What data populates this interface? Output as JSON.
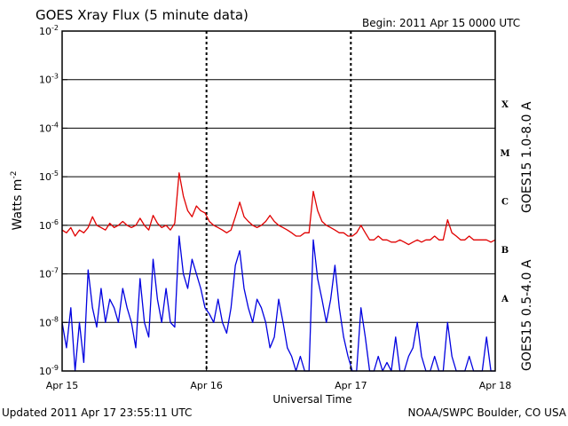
{
  "chart_data": {
    "type": "line",
    "title": "GOES Xray Flux (5 minute data)",
    "begin_label": "Begin:  2011 Apr 15 0000 UTC",
    "xlabel": "Universal Time",
    "ylabel_main": "Watts m",
    "ylabel_exp": "-2",
    "y_scale": "log",
    "ylim": [
      1e-09,
      0.01
    ],
    "y_ticks": [
      {
        "base": "10",
        "exp": "-2"
      },
      {
        "base": "10",
        "exp": "-3"
      },
      {
        "base": "10",
        "exp": "-4"
      },
      {
        "base": "10",
        "exp": "-5"
      },
      {
        "base": "10",
        "exp": "-6"
      },
      {
        "base": "10",
        "exp": "-7"
      },
      {
        "base": "10",
        "exp": "-8"
      },
      {
        "base": "10",
        "exp": "-9"
      }
    ],
    "x_ticks": [
      "Apr 15",
      "Apr 16",
      "Apr 17",
      "Apr 18"
    ],
    "xlim_days": [
      0,
      3
    ],
    "flare_classes": [
      "X",
      "M",
      "C",
      "B",
      "A"
    ],
    "grid": true,
    "series": [
      {
        "name": "GOES15 1.0-8.0 A",
        "color": "#e00000",
        "x_days": [
          0.0,
          0.03,
          0.06,
          0.09,
          0.12,
          0.15,
          0.18,
          0.21,
          0.24,
          0.27,
          0.3,
          0.33,
          0.36,
          0.39,
          0.42,
          0.45,
          0.48,
          0.51,
          0.54,
          0.57,
          0.6,
          0.63,
          0.66,
          0.69,
          0.72,
          0.75,
          0.78,
          0.81,
          0.84,
          0.87,
          0.9,
          0.93,
          0.96,
          0.99,
          1.02,
          1.05,
          1.08,
          1.11,
          1.14,
          1.17,
          1.2,
          1.23,
          1.26,
          1.29,
          1.32,
          1.35,
          1.38,
          1.41,
          1.44,
          1.47,
          1.5,
          1.53,
          1.56,
          1.59,
          1.62,
          1.65,
          1.68,
          1.71,
          1.74,
          1.77,
          1.8,
          1.83,
          1.86,
          1.89,
          1.92,
          1.95,
          1.98,
          2.01,
          2.04,
          2.07,
          2.1,
          2.13,
          2.16,
          2.19,
          2.22,
          2.25,
          2.28,
          2.31,
          2.34,
          2.37,
          2.4,
          2.43,
          2.46,
          2.49,
          2.52,
          2.55,
          2.58,
          2.61,
          2.64,
          2.67,
          2.7,
          2.73,
          2.76,
          2.79,
          2.82,
          2.85,
          2.88,
          2.91,
          2.94,
          2.97,
          3.0
        ],
        "y": [
          8e-07,
          7e-07,
          9e-07,
          6e-07,
          8e-07,
          7e-07,
          9e-07,
          1.5e-06,
          1e-06,
          9e-07,
          8e-07,
          1.1e-06,
          9e-07,
          1e-06,
          1.2e-06,
          1e-06,
          9e-07,
          1e-06,
          1.4e-06,
          1e-06,
          8e-07,
          1.6e-06,
          1.1e-06,
          9e-07,
          1e-06,
          8e-07,
          1.1e-06,
          1.2e-05,
          4e-06,
          2e-06,
          1.5e-06,
          2.5e-06,
          2e-06,
          1.8e-06,
          1.2e-06,
          1e-06,
          9e-07,
          8e-07,
          7e-07,
          8e-07,
          1.5e-06,
          3e-06,
          1.5e-06,
          1.2e-06,
          1e-06,
          9e-07,
          1e-06,
          1.2e-06,
          1.6e-06,
          1.2e-06,
          1e-06,
          9e-07,
          8e-07,
          7e-07,
          6e-07,
          6e-07,
          7e-07,
          7e-07,
          5e-06,
          2e-06,
          1.2e-06,
          1e-06,
          9e-07,
          8e-07,
          7e-07,
          7e-07,
          6e-07,
          6e-07,
          7e-07,
          1e-06,
          7e-07,
          5e-07,
          5e-07,
          6e-07,
          5e-07,
          5e-07,
          4.5e-07,
          4.5e-07,
          5e-07,
          4.5e-07,
          4e-07,
          4.5e-07,
          5e-07,
          4.5e-07,
          5e-07,
          5e-07,
          6e-07,
          5e-07,
          5e-07,
          1.3e-06,
          7e-07,
          6e-07,
          5e-07,
          5e-07,
          6e-07,
          5e-07,
          5e-07,
          5e-07,
          5e-07,
          4.5e-07,
          5e-07
        ]
      },
      {
        "name": "GOES15 0.5-4.0 A",
        "color": "#0000e0",
        "x_days": [
          0.0,
          0.03,
          0.06,
          0.09,
          0.12,
          0.15,
          0.18,
          0.21,
          0.24,
          0.27,
          0.3,
          0.33,
          0.36,
          0.39,
          0.42,
          0.45,
          0.48,
          0.51,
          0.54,
          0.57,
          0.6,
          0.63,
          0.66,
          0.69,
          0.72,
          0.75,
          0.78,
          0.81,
          0.84,
          0.87,
          0.9,
          0.93,
          0.96,
          0.99,
          1.02,
          1.05,
          1.08,
          1.11,
          1.14,
          1.17,
          1.2,
          1.23,
          1.26,
          1.29,
          1.32,
          1.35,
          1.38,
          1.41,
          1.44,
          1.47,
          1.5,
          1.53,
          1.56,
          1.59,
          1.62,
          1.65,
          1.68,
          1.71,
          1.74,
          1.77,
          1.8,
          1.83,
          1.86,
          1.89,
          1.92,
          1.95,
          1.98,
          2.01,
          2.04,
          2.07,
          2.1,
          2.13,
          2.16,
          2.19,
          2.22,
          2.25,
          2.28,
          2.31,
          2.34,
          2.37,
          2.4,
          2.43,
          2.46,
          2.49,
          2.52,
          2.55,
          2.58,
          2.61,
          2.64,
          2.67,
          2.7,
          2.73,
          2.76,
          2.79,
          2.82,
          2.85,
          2.88,
          2.91,
          2.94,
          2.97,
          3.0
        ],
        "y": [
          1e-08,
          3e-09,
          2e-08,
          1e-09,
          1e-08,
          1.5e-09,
          1.2e-07,
          2e-08,
          8e-09,
          5e-08,
          1e-08,
          3e-08,
          2e-08,
          1e-08,
          5e-08,
          2e-08,
          1e-08,
          3e-09,
          8e-08,
          1e-08,
          5e-09,
          2e-07,
          3e-08,
          1e-08,
          5e-08,
          1e-08,
          8e-09,
          6e-07,
          1e-07,
          5e-08,
          2e-07,
          1e-07,
          5e-08,
          2e-08,
          1.5e-08,
          1e-08,
          3e-08,
          1e-08,
          6e-09,
          2e-08,
          1.5e-07,
          3e-07,
          5e-08,
          2e-08,
          1e-08,
          3e-08,
          2e-08,
          1e-08,
          3e-09,
          5e-09,
          3e-08,
          1e-08,
          3e-09,
          2e-09,
          1e-09,
          2e-09,
          1e-09,
          1e-09,
          5e-07,
          8e-08,
          3e-08,
          1e-08,
          3e-08,
          1.5e-07,
          2e-08,
          5e-09,
          2e-09,
          1e-09,
          1e-09,
          2e-08,
          5e-09,
          1e-09,
          1e-09,
          2e-09,
          1e-09,
          1.5e-09,
          1e-09,
          5e-09,
          1e-09,
          1e-09,
          2e-09,
          3e-09,
          1e-08,
          2e-09,
          1e-09,
          1e-09,
          2e-09,
          1e-09,
          1e-09,
          1e-08,
          2e-09,
          1e-09,
          1e-09,
          1e-09,
          2e-09,
          1e-09,
          1e-09,
          1e-09,
          5e-09,
          1e-09,
          1e-09
        ]
      }
    ]
  },
  "footer": {
    "updated": "Updated 2011 Apr 17 23:55:11 UTC",
    "credit": "NOAA/SWPC Boulder, CO USA"
  }
}
